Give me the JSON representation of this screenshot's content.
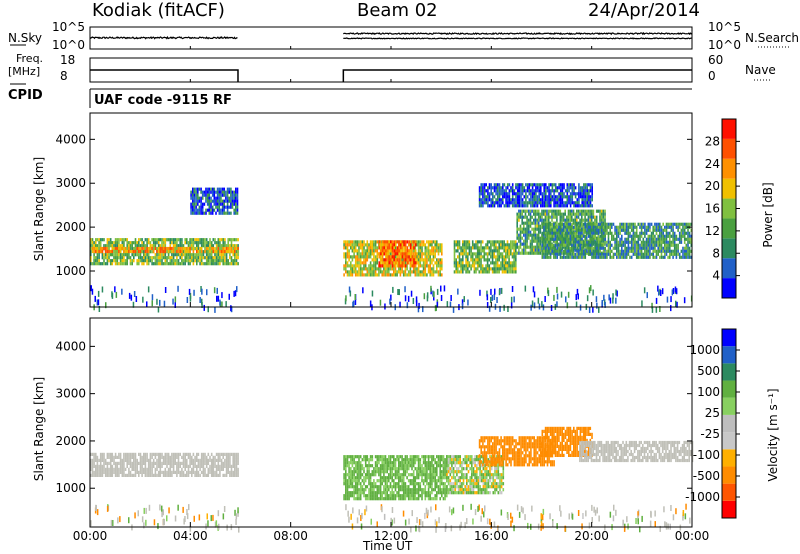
{
  "header": {
    "station": "Kodiak (fitACF)",
    "beam": "Beam 02",
    "date": "24/Apr/2014"
  },
  "top_panels": {
    "nsky_label": "N.Sky",
    "nsky_ticks": [
      "10^5",
      "10^0"
    ],
    "nsearch_label": "N.Search",
    "nsearch_ticks": [
      "10^5",
      "10^0"
    ],
    "freq_label_1": "Freq.",
    "freq_label_2": "[MHz]",
    "freq_ticks": [
      "18",
      "8"
    ],
    "nave_label": "Nave",
    "nave_ticks": [
      "60",
      "0"
    ],
    "cpid_label": "CPID",
    "cpid_text": "UAF code -9115 RF"
  },
  "colors": {
    "power_scale": [
      "#0000ff",
      "#2060c8",
      "#2c8a60",
      "#4aa040",
      "#80c040",
      "#f0c000",
      "#ff9000",
      "#ff5000",
      "#ff1000"
    ],
    "velocity_scale": [
      "#ff0000",
      "#ff5500",
      "#ff8c00",
      "#ffb000",
      "#c8c8c8",
      "#bebebe",
      "#88d060",
      "#60b040",
      "#2c8a60",
      "#2060c8",
      "#0000ff"
    ],
    "ground_scatter": "#c0c0b8"
  },
  "chart_data": [
    {
      "type": "heatmap",
      "panel": "power",
      "ylabel": "Slant Range [km]",
      "yticks": [
        "1000",
        "2000",
        "3000",
        "4000"
      ],
      "ylim": [
        180,
        4600
      ],
      "xlim_hours": [
        0,
        24
      ],
      "colorbar_title": "Power [dB]",
      "colorbar_ticks": [
        "4",
        "8",
        "12",
        "16",
        "20",
        "24",
        "28"
      ],
      "colorbar_range": [
        0,
        32
      ],
      "regions": [
        {
          "t": [
            0.0,
            5.9
          ],
          "r": [
            1200,
            1750
          ],
          "power": 14,
          "note": "band"
        },
        {
          "t": [
            0.0,
            5.9
          ],
          "r": [
            1450,
            1550
          ],
          "power": 22
        },
        {
          "t": [
            4.0,
            5.9
          ],
          "r": [
            2350,
            2900
          ],
          "power": 6
        },
        {
          "t": [
            10.1,
            14.0
          ],
          "r": [
            900,
            1700
          ],
          "power": 18
        },
        {
          "t": [
            11.5,
            13.0
          ],
          "r": [
            1100,
            1700
          ],
          "power": 25
        },
        {
          "t": [
            14.5,
            17.0
          ],
          "r": [
            1000,
            1700
          ],
          "power": 14
        },
        {
          "t": [
            17.0,
            20.5
          ],
          "r": [
            1400,
            2400
          ],
          "power": 12
        },
        {
          "t": [
            18.0,
            24.0
          ],
          "r": [
            1300,
            2100
          ],
          "power": 10
        },
        {
          "t": [
            15.5,
            20.0
          ],
          "r": [
            2500,
            3000
          ],
          "power": 5
        }
      ]
    },
    {
      "type": "heatmap",
      "panel": "velocity",
      "ylabel": "Slant Range [km]",
      "yticks": [
        "1000",
        "2000",
        "3000",
        "4000"
      ],
      "ylim": [
        180,
        4600
      ],
      "xlim_hours": [
        0,
        24
      ],
      "xticks": [
        "00:00",
        "04:00",
        "08:00",
        "12:00",
        "16:00",
        "20:00",
        "00:00"
      ],
      "xlabel": "Time UT",
      "colorbar_title": "Velocity [m s⁻¹]",
      "colorbar_ticks": [
        "1000",
        "500",
        "100",
        "25",
        "-25",
        "-100",
        "-500",
        "-1000"
      ],
      "regions": [
        {
          "t": [
            0.0,
            5.9
          ],
          "r": [
            1300,
            1750
          ],
          "velocity": 0,
          "ground": true
        },
        {
          "t": [
            10.1,
            14.2
          ],
          "r": [
            800,
            1700
          ],
          "velocity": 150
        },
        {
          "t": [
            14.2,
            16.5
          ],
          "r": [
            900,
            1700
          ],
          "velocity": 60
        },
        {
          "t": [
            15.5,
            18.5
          ],
          "r": [
            1500,
            2100
          ],
          "velocity": -250
        },
        {
          "t": [
            18.0,
            20.0
          ],
          "r": [
            1700,
            2300
          ],
          "velocity": -300
        },
        {
          "t": [
            19.5,
            24.0
          ],
          "r": [
            1600,
            2000
          ],
          "velocity": 0,
          "ground": true
        }
      ]
    }
  ]
}
